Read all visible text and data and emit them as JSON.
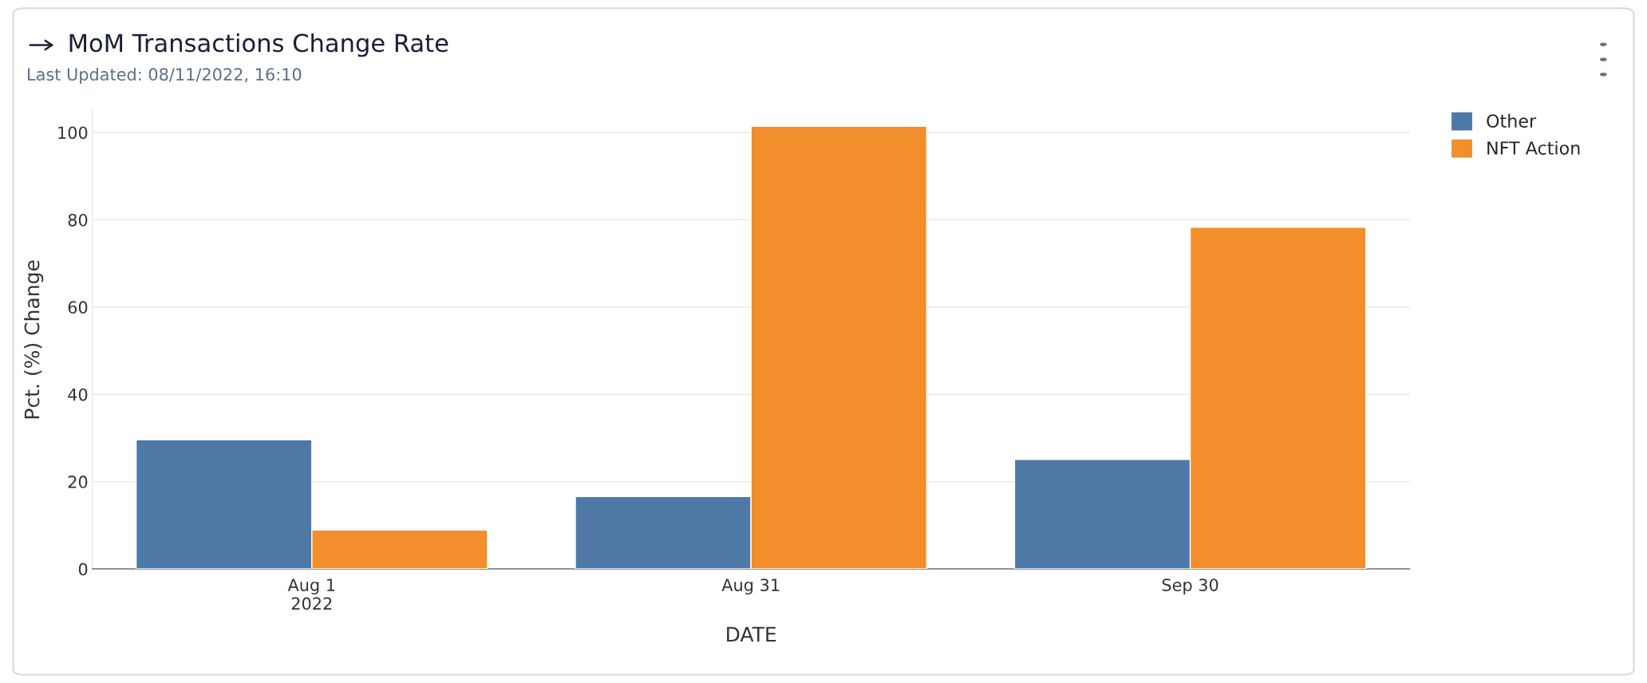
{
  "chart_data": {
    "type": "bar",
    "title": "MoM Transactions Change Rate",
    "subtitle": "Last Updated: 08/11/2022, 16:10",
    "xlabel": "DATE",
    "ylabel": "Pct. (%) Change",
    "categories": [
      "Aug 1\n2022",
      "Aug 31",
      "Sep 30"
    ],
    "series": [
      {
        "name": "Other",
        "color": "#4e79a7",
        "values": [
          29.6,
          16.6,
          25.1
        ]
      },
      {
        "name": "NFT Action",
        "color": "#f28e2b",
        "values": [
          8.9,
          101.4,
          78.3
        ]
      }
    ],
    "ylim": [
      0,
      105
    ],
    "yticks": [
      0,
      20,
      40,
      60,
      80,
      100
    ],
    "grid": "y",
    "legend": "top right"
  }
}
